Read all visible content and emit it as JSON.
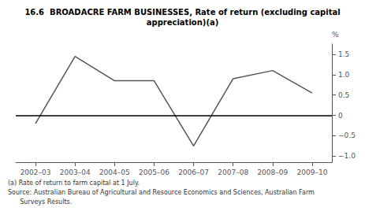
{
  "chart_data": {
    "type": "line",
    "title": "16.6  BROADACRE FARM BUSINESSES, Rate of return (excluding capital\nappreciation)(a)",
    "ylabel": "%",
    "categories": [
      "2002–03",
      "2003–04",
      "2004–05",
      "2005–06",
      "2006–07",
      "2007–08",
      "2008–09",
      "2009–10"
    ],
    "values": [
      -0.2,
      1.45,
      0.85,
      0.85,
      -0.75,
      0.9,
      1.1,
      0.55
    ],
    "color": "#555555",
    "ylim": [
      -1.15,
      1.75
    ],
    "yticks": [
      {
        "value": -1.0,
        "label": "−1.0"
      },
      {
        "value": -0.5,
        "label": "−0.5"
      },
      0,
      0.5,
      {
        "value": 1.0,
        "label": "1.0"
      },
      1.5
    ],
    "grid": false,
    "annotations": [
      "(a) Rate of return to farm capital at 1 July.",
      "Source: Australian Bureau of Agricultural and Resource Economics and Sciences, Australian Farm",
      "      Surveys Results."
    ]
  }
}
